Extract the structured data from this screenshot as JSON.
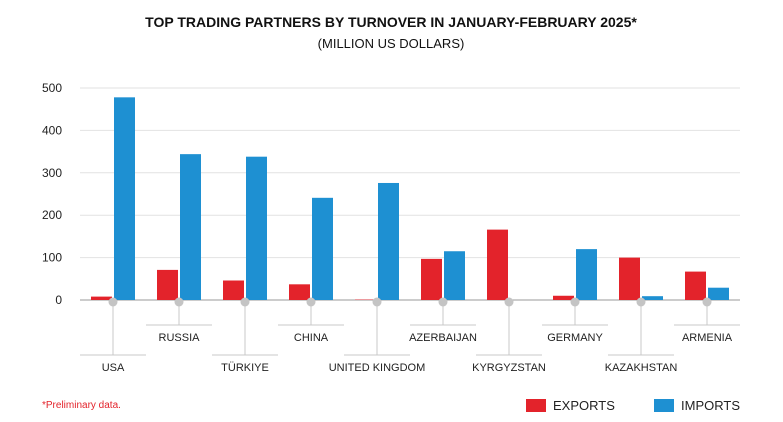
{
  "chart_data": {
    "type": "bar",
    "title": "TOP TRADING PARTNERS BY TURNOVER IN JANUARY-FEBRUARY 2025*",
    "subtitle": "(MILLION US DOLLARS)",
    "categories": [
      "USA",
      "RUSSIA",
      "TÜRKIYE",
      "CHINA",
      "UNITED KINGDOM",
      "AZERBAIJAN",
      "KYRGYZSTAN",
      "GERMANY",
      "KAZAKHSTAN",
      "ARMENIA"
    ],
    "series": [
      {
        "name": "EXPORTS",
        "color": "#e3232b",
        "values": [
          8,
          71,
          46,
          37,
          1,
          97,
          166,
          10,
          100,
          67
        ]
      },
      {
        "name": "IMPORTS",
        "color": "#1e90d2",
        "values": [
          478,
          344,
          338,
          241,
          276,
          115,
          0,
          120,
          9,
          29
        ]
      }
    ],
    "yticks": [
      0,
      100,
      200,
      300,
      400,
      500
    ],
    "ylim": [
      0,
      500
    ],
    "grid": true,
    "legend_position": "bottom-right",
    "footnote": "*Preliminary data."
  }
}
